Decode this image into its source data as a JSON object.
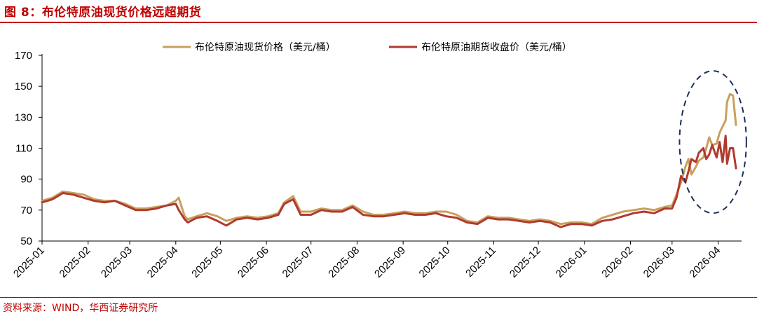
{
  "header": {
    "title": "图 8：布伦特原油现货价格远超期货"
  },
  "footer": {
    "source": "资料来源：WIND，华西证券研究所"
  },
  "colors": {
    "brand_red": "#c00000",
    "spot": "#c8a05c",
    "futures": "#b03a2e",
    "highlight": "#1f2f5a"
  },
  "chart_data": {
    "type": "line",
    "title": "",
    "xlabel": "",
    "ylabel": "",
    "ylim": [
      50,
      170
    ],
    "yticks": [
      50,
      70,
      90,
      110,
      130,
      150,
      170
    ],
    "xlim": [
      "2025-01-01",
      "2026-04-13"
    ],
    "xticks": [
      "2025-01",
      "2025-02",
      "2025-03",
      "2025-04",
      "2025-05",
      "2025-06",
      "2025-07",
      "2025-08",
      "2025-09",
      "2025-10",
      "2025-11",
      "2025-12",
      "2026-01",
      "2026-02",
      "2026-03",
      "2026-04"
    ],
    "legend": {
      "position": "top"
    },
    "grid": false,
    "annotations": [
      {
        "type": "dashed-ellipse",
        "x_range": [
          "2026-03-06",
          "2026-04-20"
        ],
        "y_range": [
          68,
          160
        ]
      }
    ],
    "series": [
      {
        "name": "布伦特原油现货价格（美元/桶）",
        "color": "#c8a05c",
        "points": [
          [
            "2025-01-01",
            76
          ],
          [
            "2025-01-08",
            78
          ],
          [
            "2025-01-15",
            82
          ],
          [
            "2025-01-22",
            81
          ],
          [
            "2025-01-29",
            80
          ],
          [
            "2025-02-05",
            77
          ],
          [
            "2025-02-12",
            76
          ],
          [
            "2025-02-19",
            76
          ],
          [
            "2025-02-26",
            74
          ],
          [
            "2025-03-05",
            71
          ],
          [
            "2025-03-12",
            71
          ],
          [
            "2025-03-19",
            72
          ],
          [
            "2025-03-26",
            73
          ],
          [
            "2025-04-01",
            76
          ],
          [
            "2025-04-03",
            78
          ],
          [
            "2025-04-07",
            66
          ],
          [
            "2025-04-09",
            64
          ],
          [
            "2025-04-15",
            66
          ],
          [
            "2025-04-22",
            68
          ],
          [
            "2025-04-29",
            66
          ],
          [
            "2025-05-05",
            63
          ],
          [
            "2025-05-12",
            65
          ],
          [
            "2025-05-19",
            66
          ],
          [
            "2025-05-26",
            65
          ],
          [
            "2025-06-02",
            66
          ],
          [
            "2025-06-09",
            68
          ],
          [
            "2025-06-13",
            75
          ],
          [
            "2025-06-19",
            79
          ],
          [
            "2025-06-24",
            69
          ],
          [
            "2025-07-01",
            69
          ],
          [
            "2025-07-08",
            71
          ],
          [
            "2025-07-15",
            70
          ],
          [
            "2025-07-22",
            70
          ],
          [
            "2025-07-29",
            73
          ],
          [
            "2025-08-05",
            69
          ],
          [
            "2025-08-12",
            67
          ],
          [
            "2025-08-19",
            67
          ],
          [
            "2025-08-26",
            68
          ],
          [
            "2025-09-02",
            69
          ],
          [
            "2025-09-09",
            68
          ],
          [
            "2025-09-16",
            68
          ],
          [
            "2025-09-23",
            69
          ],
          [
            "2025-09-30",
            69
          ],
          [
            "2025-10-07",
            67
          ],
          [
            "2025-10-14",
            63
          ],
          [
            "2025-10-21",
            62
          ],
          [
            "2025-10-28",
            66
          ],
          [
            "2025-11-04",
            65
          ],
          [
            "2025-11-11",
            65
          ],
          [
            "2025-11-18",
            64
          ],
          [
            "2025-11-25",
            63
          ],
          [
            "2025-12-02",
            64
          ],
          [
            "2025-12-09",
            63
          ],
          [
            "2025-12-16",
            61
          ],
          [
            "2025-12-23",
            62
          ],
          [
            "2025-12-30",
            62
          ],
          [
            "2026-01-06",
            61
          ],
          [
            "2026-01-13",
            65
          ],
          [
            "2026-01-20",
            67
          ],
          [
            "2026-01-27",
            69
          ],
          [
            "2026-02-03",
            70
          ],
          [
            "2026-02-10",
            71
          ],
          [
            "2026-02-17",
            70
          ],
          [
            "2026-02-24",
            72
          ],
          [
            "2026-03-01",
            73
          ],
          [
            "2026-03-04",
            80
          ],
          [
            "2026-03-07",
            88
          ],
          [
            "2026-03-10",
            98
          ],
          [
            "2026-03-12",
            103
          ],
          [
            "2026-03-14",
            93
          ],
          [
            "2026-03-17",
            98
          ],
          [
            "2026-03-19",
            102
          ],
          [
            "2026-03-22",
            104
          ],
          [
            "2026-03-24",
            110
          ],
          [
            "2026-03-26",
            117
          ],
          [
            "2026-03-28",
            112
          ],
          [
            "2026-03-31",
            113
          ],
          [
            "2026-04-02",
            120
          ],
          [
            "2026-04-04",
            124
          ],
          [
            "2026-04-06",
            128
          ],
          [
            "2026-04-07",
            140
          ],
          [
            "2026-04-09",
            145
          ],
          [
            "2026-04-11",
            144
          ],
          [
            "2026-04-13",
            125
          ]
        ]
      },
      {
        "name": "布伦特原油期货收盘价（美元/桶）",
        "color": "#b03a2e",
        "points": [
          [
            "2025-01-01",
            75
          ],
          [
            "2025-01-08",
            77
          ],
          [
            "2025-01-15",
            81
          ],
          [
            "2025-01-22",
            80
          ],
          [
            "2025-01-29",
            78
          ],
          [
            "2025-02-05",
            76
          ],
          [
            "2025-02-12",
            75
          ],
          [
            "2025-02-19",
            76
          ],
          [
            "2025-02-26",
            73
          ],
          [
            "2025-03-05",
            70
          ],
          [
            "2025-03-12",
            70
          ],
          [
            "2025-03-19",
            71
          ],
          [
            "2025-03-26",
            73
          ],
          [
            "2025-04-01",
            74
          ],
          [
            "2025-04-03",
            70
          ],
          [
            "2025-04-07",
            64
          ],
          [
            "2025-04-09",
            62
          ],
          [
            "2025-04-15",
            65
          ],
          [
            "2025-04-22",
            66
          ],
          [
            "2025-04-29",
            63
          ],
          [
            "2025-05-05",
            60
          ],
          [
            "2025-05-12",
            64
          ],
          [
            "2025-05-19",
            65
          ],
          [
            "2025-05-26",
            64
          ],
          [
            "2025-06-02",
            65
          ],
          [
            "2025-06-09",
            67
          ],
          [
            "2025-06-13",
            74
          ],
          [
            "2025-06-19",
            77
          ],
          [
            "2025-06-24",
            67
          ],
          [
            "2025-07-01",
            67
          ],
          [
            "2025-07-08",
            70
          ],
          [
            "2025-07-15",
            69
          ],
          [
            "2025-07-22",
            69
          ],
          [
            "2025-07-29",
            72
          ],
          [
            "2025-08-05",
            67
          ],
          [
            "2025-08-12",
            66
          ],
          [
            "2025-08-19",
            66
          ],
          [
            "2025-08-26",
            67
          ],
          [
            "2025-09-02",
            68
          ],
          [
            "2025-09-09",
            67
          ],
          [
            "2025-09-16",
            67
          ],
          [
            "2025-09-23",
            68
          ],
          [
            "2025-09-30",
            66
          ],
          [
            "2025-10-07",
            65
          ],
          [
            "2025-10-14",
            62
          ],
          [
            "2025-10-21",
            61
          ],
          [
            "2025-10-28",
            65
          ],
          [
            "2025-11-04",
            64
          ],
          [
            "2025-11-11",
            64
          ],
          [
            "2025-11-18",
            63
          ],
          [
            "2025-11-25",
            62
          ],
          [
            "2025-12-02",
            63
          ],
          [
            "2025-12-09",
            62
          ],
          [
            "2025-12-16",
            59
          ],
          [
            "2025-12-23",
            61
          ],
          [
            "2025-12-30",
            61
          ],
          [
            "2026-01-06",
            60
          ],
          [
            "2026-01-13",
            63
          ],
          [
            "2026-01-20",
            64
          ],
          [
            "2026-01-27",
            66
          ],
          [
            "2026-02-03",
            68
          ],
          [
            "2026-02-10",
            69
          ],
          [
            "2026-02-17",
            68
          ],
          [
            "2026-02-24",
            71
          ],
          [
            "2026-03-01",
            71
          ],
          [
            "2026-03-04",
            78
          ],
          [
            "2026-03-07",
            92
          ],
          [
            "2026-03-10",
            88
          ],
          [
            "2026-03-12",
            95
          ],
          [
            "2026-03-14",
            103
          ],
          [
            "2026-03-17",
            101
          ],
          [
            "2026-03-19",
            107
          ],
          [
            "2026-03-22",
            110
          ],
          [
            "2026-03-24",
            103
          ],
          [
            "2026-03-26",
            106
          ],
          [
            "2026-03-28",
            112
          ],
          [
            "2026-03-31",
            104
          ],
          [
            "2026-04-02",
            114
          ],
          [
            "2026-04-04",
            101
          ],
          [
            "2026-04-06",
            118
          ],
          [
            "2026-04-07",
            100
          ],
          [
            "2026-04-09",
            110
          ],
          [
            "2026-04-11",
            110
          ],
          [
            "2026-04-13",
            97
          ]
        ]
      }
    ]
  }
}
